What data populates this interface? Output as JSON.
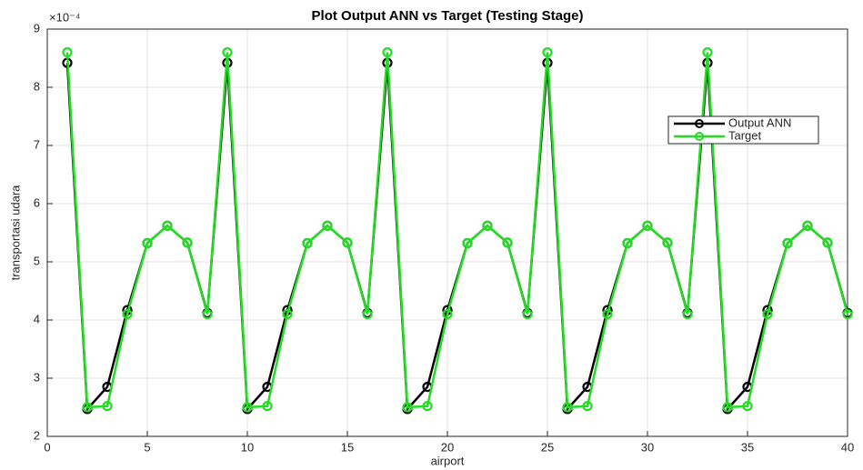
{
  "chart_data": {
    "type": "line",
    "title": "Plot Output ANN vs Target (Testing Stage)",
    "x_label": "airport",
    "y_label": "transportasi udara",
    "y_exponent_label": "×10⁻⁴",
    "x": [
      1,
      2,
      3,
      4,
      5,
      6,
      7,
      8,
      9,
      10,
      11,
      12,
      13,
      14,
      15,
      16,
      17,
      18,
      19,
      20,
      21,
      22,
      23,
      24,
      25,
      26,
      27,
      28,
      29,
      30,
      31,
      32,
      33,
      34,
      35,
      36,
      37,
      38,
      39,
      40
    ],
    "series": [
      {
        "name": "Output ANN",
        "color": "#000000",
        "values": [
          8.42,
          2.47,
          2.85,
          4.17,
          5.32,
          5.62,
          5.33,
          4.12,
          8.42,
          2.47,
          2.85,
          4.17,
          5.32,
          5.62,
          5.33,
          4.12,
          8.42,
          2.47,
          2.85,
          4.17,
          5.32,
          5.62,
          5.33,
          4.12,
          8.42,
          2.47,
          2.85,
          4.17,
          5.32,
          5.62,
          5.33,
          4.12,
          8.42,
          2.47,
          2.85,
          4.17,
          5.32,
          5.62,
          5.33,
          4.12
        ]
      },
      {
        "name": "Target",
        "color": "#22dd22",
        "values": [
          8.6,
          2.5,
          2.52,
          4.1,
          5.32,
          5.62,
          5.33,
          4.1,
          8.6,
          2.5,
          2.52,
          4.1,
          5.32,
          5.62,
          5.33,
          4.1,
          8.6,
          2.5,
          2.52,
          4.1,
          5.32,
          5.62,
          5.33,
          4.1,
          8.6,
          2.5,
          2.52,
          4.1,
          5.32,
          5.62,
          5.33,
          4.1,
          8.6,
          2.5,
          2.52,
          4.1,
          5.32,
          5.62,
          5.33,
          4.1
        ]
      }
    ],
    "xlim": [
      0,
      40
    ],
    "xticks": [
      0,
      5,
      10,
      15,
      20,
      25,
      30,
      35,
      40
    ],
    "ylim": [
      2,
      9
    ],
    "yticks": [
      2,
      3,
      4,
      5,
      6,
      7,
      8,
      9
    ],
    "grid": true,
    "legend": "northeast"
  }
}
